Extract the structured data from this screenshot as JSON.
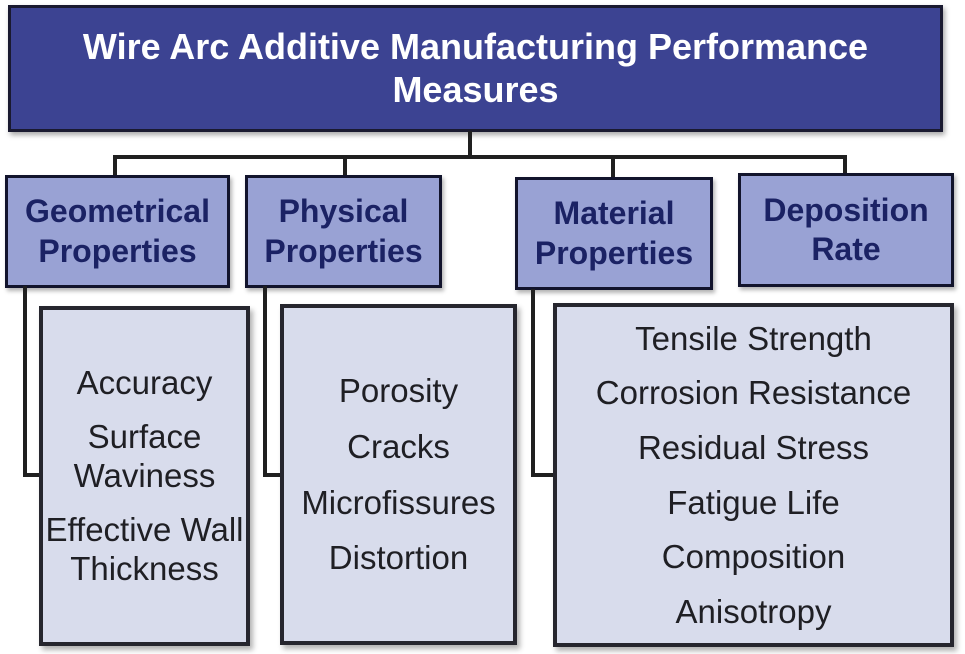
{
  "diagram": {
    "title": "Wire Arc Additive Manufacturing Performance Measures",
    "categories": [
      {
        "label": "Geometrical Properties",
        "items": [
          "Accuracy",
          "Surface Waviness",
          "Effective Wall Thickness"
        ]
      },
      {
        "label": "Physical Properties",
        "items": [
          "Porosity",
          "Cracks",
          "Microfissures",
          "Distortion"
        ]
      },
      {
        "label": "Material Properties",
        "items": [
          "Tensile Strength",
          "Corrosion Resistance",
          "Residual Stress",
          "Fatigue Life",
          "Composition",
          "Anisotropy"
        ]
      },
      {
        "label": "Deposition Rate",
        "items": []
      }
    ],
    "colors": {
      "root_fill": "#3c4392",
      "root_border": "#1a1a30",
      "root_text": "#ffffff",
      "category_fill": "#99a2d4",
      "category_border": "#12142c",
      "category_text": "#1b2264",
      "leaf_fill": "#d8dcec",
      "leaf_border": "#26262e",
      "leaf_text": "#1f1f24",
      "connector": "#202020"
    }
  }
}
